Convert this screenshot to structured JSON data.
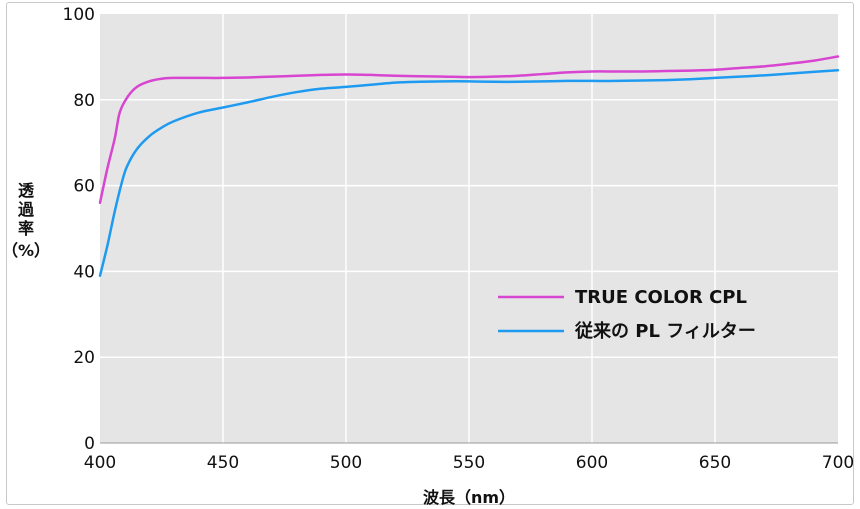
{
  "chart_data": {
    "type": "line",
    "title": "",
    "xlabel": "波長（nm）",
    "ylabel_lines": [
      "透",
      "過",
      "率",
      "（%）"
    ],
    "xlim": [
      400,
      700
    ],
    "ylim": [
      0,
      100
    ],
    "x_ticks": [
      400,
      450,
      500,
      550,
      600,
      650,
      700
    ],
    "y_ticks": [
      0,
      20,
      40,
      60,
      80,
      100
    ],
    "grid": true,
    "legend_position": "center-right",
    "series": [
      {
        "name": "TRUE COLOR CPL",
        "color": "#d845d0",
        "x": [
          400,
          403,
          406,
          408,
          411,
          415,
          420,
          425,
          430,
          440,
          450,
          460,
          470,
          480,
          490,
          500,
          510,
          520,
          530,
          540,
          550,
          560,
          570,
          580,
          590,
          600,
          610,
          620,
          630,
          640,
          650,
          660,
          670,
          680,
          690,
          700
        ],
        "y": [
          56,
          64,
          71,
          77,
          80.5,
          83,
          84.3,
          84.9,
          85.1,
          85.1,
          85.1,
          85.2,
          85.4,
          85.6,
          85.8,
          85.9,
          85.8,
          85.6,
          85.5,
          85.4,
          85.3,
          85.4,
          85.6,
          86,
          86.4,
          86.6,
          86.6,
          86.6,
          86.7,
          86.8,
          87,
          87.4,
          87.8,
          88.4,
          89.1,
          90.1
        ]
      },
      {
        "name": "従来の PL フィルター",
        "color": "#1e9bf0",
        "x": [
          400,
          403,
          406,
          409,
          411,
          415,
          420,
          425,
          430,
          440,
          450,
          460,
          470,
          480,
          490,
          500,
          510,
          520,
          530,
          540,
          550,
          560,
          570,
          580,
          590,
          600,
          610,
          620,
          630,
          640,
          650,
          660,
          670,
          680,
          690,
          700
        ],
        "y": [
          39,
          46,
          54,
          61,
          64.5,
          68.5,
          71.5,
          73.5,
          75,
          77,
          78.2,
          79.4,
          80.7,
          81.8,
          82.6,
          83,
          83.5,
          84,
          84.2,
          84.3,
          84.3,
          84.2,
          84.2,
          84.3,
          84.4,
          84.4,
          84.4,
          84.5,
          84.6,
          84.8,
          85.1,
          85.4,
          85.7,
          86.1,
          86.5,
          86.9
        ]
      }
    ]
  }
}
